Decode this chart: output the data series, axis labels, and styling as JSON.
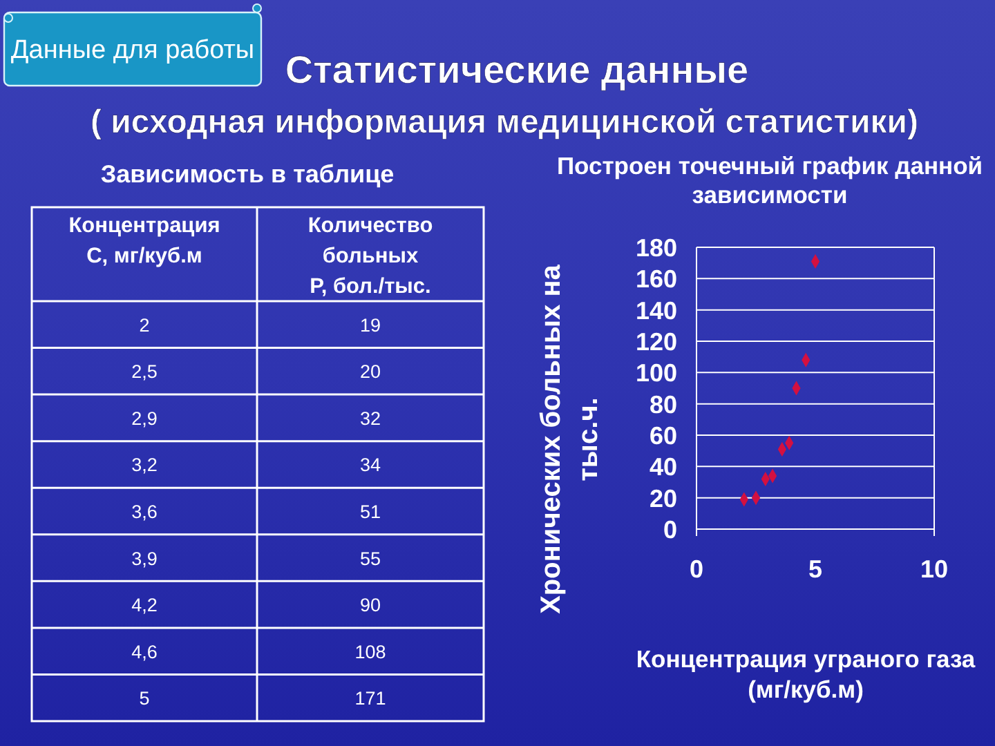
{
  "chart_data": [
    {
      "type": "other",
      "title": "Статистические данные",
      "subtitle": "( исходная информация медицинской статистики)",
      "annotations": [
        "Данные для работы",
        "Зависимость в таблице",
        "Концентрация С, мг/куб.м",
        "Количество больных Р, бол./тыс.",
        "2",
        "19",
        "2,5",
        "20",
        "2,9",
        "32",
        "3,2",
        "34",
        "3,6",
        "51",
        "3,9",
        "55",
        "4,2",
        "90",
        "4,6",
        "108",
        "5",
        "171"
      ]
    },
    {
      "type": "scatter",
      "title": "Построен точечный график данной зависимости",
      "xlabel": "Концентрация уграного газа (мг/куб.м)",
      "ylabel": "Хронических больных на тыс.ч.",
      "x": [
        2,
        2.5,
        2.9,
        3.2,
        3.6,
        3.9,
        4.2,
        4.6,
        5
      ],
      "values": [
        19,
        20,
        32,
        34,
        51,
        55,
        90,
        108,
        171
      ],
      "color": "#d41040",
      "marker": "diamond",
      "xlim": [
        0,
        10
      ],
      "xticks": [
        0,
        5,
        10
      ],
      "ylim": [
        0,
        180
      ],
      "yticks": [
        0,
        20,
        40,
        60,
        80,
        100,
        120,
        140,
        160,
        180
      ],
      "grid": "y"
    }
  ]
}
